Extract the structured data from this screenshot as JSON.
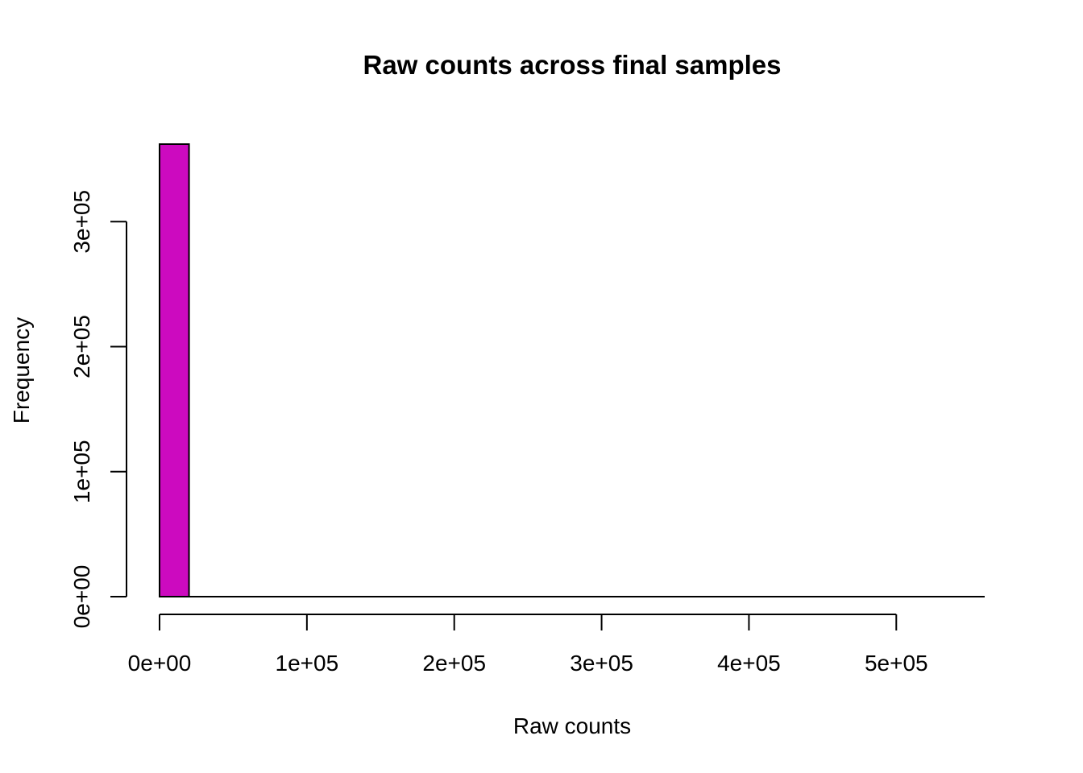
{
  "chart_data": {
    "type": "bar",
    "title": "Raw counts across final samples",
    "xlabel": "Raw counts",
    "ylabel": "Frequency",
    "bar_color": "#CC0ABF",
    "bin_width": 20000,
    "bins": [
      {
        "x0": 0,
        "x1": 20000,
        "count": 362000
      },
      {
        "x0": 20000,
        "x1": 40000,
        "count": 0
      },
      {
        "x0": 40000,
        "x1": 60000,
        "count": 0
      },
      {
        "x0": 60000,
        "x1": 80000,
        "count": 0
      },
      {
        "x0": 80000,
        "x1": 100000,
        "count": 0
      },
      {
        "x0": 100000,
        "x1": 120000,
        "count": 0
      },
      {
        "x0": 120000,
        "x1": 140000,
        "count": 0
      },
      {
        "x0": 140000,
        "x1": 160000,
        "count": 0
      },
      {
        "x0": 160000,
        "x1": 180000,
        "count": 0
      },
      {
        "x0": 180000,
        "x1": 200000,
        "count": 0
      },
      {
        "x0": 200000,
        "x1": 220000,
        "count": 0
      },
      {
        "x0": 220000,
        "x1": 240000,
        "count": 0
      },
      {
        "x0": 240000,
        "x1": 260000,
        "count": 0
      },
      {
        "x0": 260000,
        "x1": 280000,
        "count": 0
      },
      {
        "x0": 280000,
        "x1": 300000,
        "count": 0
      },
      {
        "x0": 300000,
        "x1": 320000,
        "count": 0
      },
      {
        "x0": 320000,
        "x1": 340000,
        "count": 0
      },
      {
        "x0": 340000,
        "x1": 360000,
        "count": 0
      },
      {
        "x0": 360000,
        "x1": 380000,
        "count": 0
      },
      {
        "x0": 380000,
        "x1": 400000,
        "count": 0
      },
      {
        "x0": 400000,
        "x1": 420000,
        "count": 0
      },
      {
        "x0": 420000,
        "x1": 440000,
        "count": 0
      },
      {
        "x0": 440000,
        "x1": 460000,
        "count": 0
      },
      {
        "x0": 460000,
        "x1": 480000,
        "count": 0
      },
      {
        "x0": 480000,
        "x1": 500000,
        "count": 0
      },
      {
        "x0": 500000,
        "x1": 520000,
        "count": 0
      },
      {
        "x0": 520000,
        "x1": 540000,
        "count": 0
      },
      {
        "x0": 540000,
        "x1": 560000,
        "count": 0
      }
    ],
    "x_ticks": [
      {
        "value": 0,
        "label": "0e+00"
      },
      {
        "value": 100000,
        "label": "1e+05"
      },
      {
        "value": 200000,
        "label": "2e+05"
      },
      {
        "value": 300000,
        "label": "3e+05"
      },
      {
        "value": 400000,
        "label": "4e+05"
      },
      {
        "value": 500000,
        "label": "5e+05"
      }
    ],
    "y_ticks": [
      {
        "value": 0,
        "label": "0e+00"
      },
      {
        "value": 100000,
        "label": "1e+05"
      },
      {
        "value": 200000,
        "label": "2e+05"
      },
      {
        "value": 300000,
        "label": "3e+05"
      }
    ],
    "xlim": [
      0,
      560000
    ],
    "ylim": [
      0,
      362000
    ],
    "grid": false,
    "legend": "none"
  }
}
